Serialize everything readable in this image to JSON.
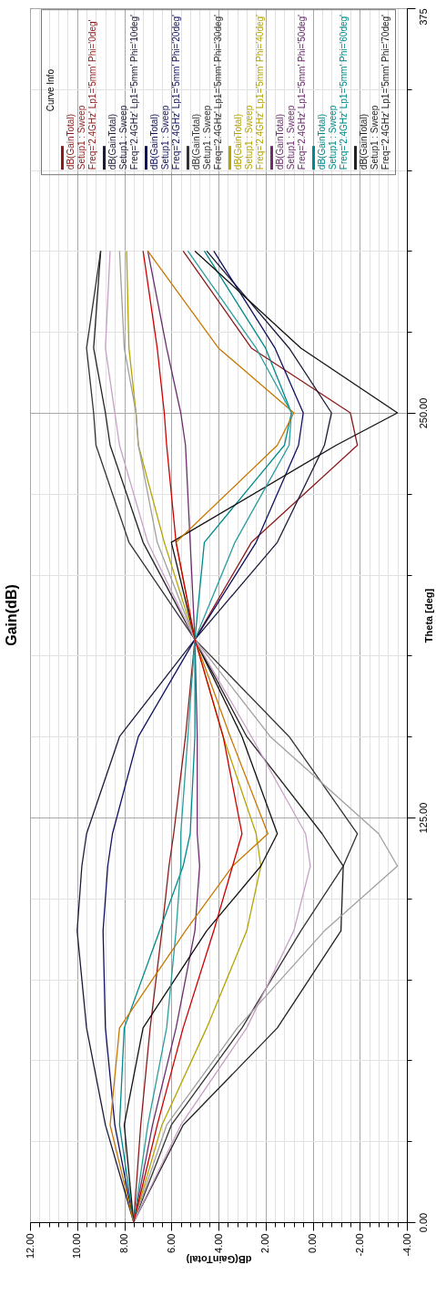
{
  "chart_data": {
    "type": "line",
    "title": "Gain(dB)",
    "xlabel": "dB(GainTotal)",
    "ylabel": "Theta [deg]",
    "legend_title": "Curve Info",
    "legend": "top",
    "grid": true,
    "xlim": [
      12,
      -4
    ],
    "xticks": [
      {
        "value": 12,
        "label": "12.00"
      },
      {
        "value": 11.6,
        "label": null
      },
      {
        "value": 11.2,
        "label": null
      },
      {
        "value": 10.8,
        "label": null
      },
      {
        "value": 10.4,
        "label": null
      },
      {
        "value": 10,
        "label": "10.00"
      },
      {
        "value": 9.6,
        "label": null
      },
      {
        "value": 9.2,
        "label": null
      },
      {
        "value": 8.8,
        "label": null
      },
      {
        "value": 8.4,
        "label": null
      },
      {
        "value": 8,
        "label": "8.00"
      },
      {
        "value": 7.6,
        "label": null
      },
      {
        "value": 7.2,
        "label": null
      },
      {
        "value": 6.8,
        "label": null
      },
      {
        "value": 6.4,
        "label": null
      },
      {
        "value": 6,
        "label": "6.00"
      },
      {
        "value": 5.6,
        "label": null
      },
      {
        "value": 5.2,
        "label": null
      },
      {
        "value": 4.8,
        "label": null
      },
      {
        "value": 4.4,
        "label": null
      },
      {
        "value": 4,
        "label": "4.00"
      },
      {
        "value": 3.6,
        "label": null
      },
      {
        "value": 3.2,
        "label": null
      },
      {
        "value": 2.8,
        "label": null
      },
      {
        "value": 2.4,
        "label": null
      },
      {
        "value": 2,
        "label": "2.00"
      },
      {
        "value": 1.6,
        "label": null
      },
      {
        "value": 1.2,
        "label": null
      },
      {
        "value": 0.8,
        "label": null
      },
      {
        "value": 0.4,
        "label": null
      },
      {
        "value": 0,
        "label": "0.00"
      },
      {
        "value": -0.4,
        "label": null
      },
      {
        "value": -0.8,
        "label": null
      },
      {
        "value": -1.2,
        "label": null
      },
      {
        "value": -1.6,
        "label": null
      },
      {
        "value": -2,
        "label": "-2.00"
      },
      {
        "value": -2.4,
        "label": null
      },
      {
        "value": -2.8,
        "label": null
      },
      {
        "value": -3.2,
        "label": null
      },
      {
        "value": -3.6,
        "label": null
      },
      {
        "value": -4,
        "label": "-4.00"
      }
    ],
    "ylim": [
      0,
      375
    ],
    "yticks": [
      {
        "value": 0,
        "label": "0.00"
      },
      {
        "value": 25,
        "label": null
      },
      {
        "value": 50,
        "label": null
      },
      {
        "value": 75,
        "label": null
      },
      {
        "value": 100,
        "label": null
      },
      {
        "value": 125,
        "label": "125.00"
      },
      {
        "value": 150,
        "label": null
      },
      {
        "value": 175,
        "label": null
      },
      {
        "value": 200,
        "label": null
      },
      {
        "value": 225,
        "label": null
      },
      {
        "value": 250,
        "label": "250.00"
      },
      {
        "value": 275,
        "label": null
      },
      {
        "value": 300,
        "label": null
      },
      {
        "value": 325,
        "label": null
      },
      {
        "value": 350,
        "label": null
      },
      {
        "value": 375,
        "label": "375"
      }
    ],
    "series": [
      {
        "name": "dB(GainTotal)\nSetup1 : Sweep\nFreq='2.4GHz' Lp1='5mm' Phi='0deg'",
        "color": "#8b1a1a",
        "x": [
          7.6,
          7.3,
          6.9,
          6.4,
          6.1,
          5.9,
          5.4,
          5.0,
          2.6,
          -1.9,
          -1.6,
          2.6,
          5.5
        ],
        "values": [
          0,
          30,
          60,
          90,
          110,
          120,
          150,
          180,
          210,
          240,
          250,
          270,
          300
        ]
      },
      {
        "name": "dB(GainTotal)\nSetup1 : Sweep\nFreq='2.4GHz' Lp1='5mm' Phi='10deg'",
        "color": "#1c1c3a",
        "x": [
          7.6,
          8.8,
          9.6,
          10.0,
          9.8,
          9.6,
          8.2,
          5.0,
          1.5,
          -0.5,
          -0.8,
          1.0,
          4.5
        ],
        "values": [
          0,
          30,
          60,
          90,
          110,
          120,
          150,
          180,
          210,
          240,
          250,
          270,
          300
        ]
      },
      {
        "name": "dB(GainTotal)\nSetup1 : Sweep\nFreq='2.4GHz' Lp1='5mm' Phi='20deg'",
        "color": "#101060",
        "x": [
          7.6,
          8.4,
          8.8,
          8.9,
          8.7,
          8.5,
          7.4,
          5.0,
          2.4,
          0.6,
          0.4,
          1.6,
          4.2
        ],
        "values": [
          0,
          30,
          60,
          90,
          110,
          120,
          150,
          180,
          210,
          240,
          250,
          270,
          300
        ]
      },
      {
        "name": "dB(GainTotal)\nSetup1 : Sweep\nFreq='2.4GHz' Lp1='5mm' Phi='30deg'",
        "color": "#333333",
        "x": [
          7.6,
          6.0,
          3.0,
          0.5,
          -1.3,
          -1.9,
          1.0,
          5.0,
          7.8,
          9.2,
          9.3,
          9.6,
          9.0
        ],
        "values": [
          0,
          30,
          60,
          90,
          110,
          120,
          150,
          180,
          210,
          240,
          250,
          270,
          300
        ]
      },
      {
        "name": "dB(GainTotal)\nSetup1 : Sweep\nFreq='2.4GHz' Lp1='5mm' Phi='40deg'",
        "color": "#b5a300",
        "x": [
          7.6,
          6.4,
          4.5,
          2.8,
          2.2,
          2.4,
          3.8,
          5.0,
          6.3,
          7.4,
          7.5,
          7.8,
          7.9
        ],
        "values": [
          0,
          30,
          60,
          90,
          110,
          120,
          150,
          180,
          210,
          240,
          250,
          270,
          300
        ]
      },
      {
        "name": "dB(GainTotal)\nSetup1 : Sweep\nFreq='2.4GHz' Lp1='5mm' Phi='50deg'",
        "color": "#6b2d6b",
        "x": [
          7.6,
          6.8,
          5.8,
          5.0,
          4.8,
          4.9,
          4.9,
          5.0,
          5.2,
          5.4,
          5.6,
          6.2,
          7.0
        ],
        "values": [
          0,
          30,
          60,
          90,
          110,
          120,
          150,
          180,
          210,
          240,
          250,
          270,
          300
        ]
      },
      {
        "name": "dB(GainTotal)\nSetup1 : Sweep\nFreq='2.4GHz' Lp1='5mm' Phi='60deg'",
        "color": "#008b8b",
        "x": [
          7.6,
          8.2,
          8.0,
          6.5,
          5.5,
          5.2,
          5.0,
          5.0,
          4.6,
          1.2,
          0.9,
          2.0,
          4.6
        ],
        "values": [
          0,
          30,
          60,
          90,
          110,
          120,
          150,
          180,
          210,
          240,
          250,
          270,
          300
        ]
      },
      {
        "name": "dB(GainTotal)\nSetup1 : Sweep\nFreq='2.4GHz' Lp1='5mm' Phi='70deg'",
        "color": "#222222",
        "x": [
          7.6,
          5.5,
          1.5,
          -1.2,
          -1.3,
          -0.4,
          2.8,
          5.0,
          7.2,
          8.6,
          8.8,
          9.3,
          9.0
        ],
        "values": [
          0,
          30,
          60,
          90,
          110,
          120,
          150,
          180,
          210,
          240,
          250,
          270,
          300
        ]
      },
      {
        "color": "#a0a0a0",
        "x": [
          7.6,
          6.2,
          3.2,
          -0.5,
          -3.6,
          -2.8,
          1.8,
          5.0,
          6.6,
          7.4,
          7.5,
          8.0,
          8.2
        ],
        "values": [
          0,
          30,
          60,
          90,
          110,
          120,
          150,
          180,
          210,
          240,
          250,
          270,
          300
        ]
      },
      {
        "color": "#111111",
        "x": [
          7.6,
          8.0,
          7.2,
          4.5,
          2.2,
          1.5,
          3.0,
          5.0,
          6.0,
          -1.0,
          -3.6,
          0.5,
          5.0
        ],
        "values": [
          0,
          30,
          60,
          90,
          110,
          120,
          150,
          180,
          210,
          240,
          250,
          270,
          300
        ]
      },
      {
        "color": "#c87800",
        "x": [
          7.6,
          8.6,
          8.2,
          5.4,
          3.4,
          1.9,
          3.5,
          5.0,
          5.8,
          1.5,
          0.8,
          4.0,
          7.0
        ],
        "values": [
          0,
          30,
          60,
          90,
          110,
          120,
          150,
          180,
          210,
          240,
          250,
          270,
          300
        ]
      },
      {
        "color": "#c8a0c8",
        "x": [
          7.6,
          5.6,
          2.8,
          0.8,
          0.1,
          0.3,
          2.6,
          5.0,
          7.0,
          8.2,
          8.4,
          8.8,
          8.6
        ],
        "values": [
          0,
          30,
          60,
          90,
          110,
          120,
          150,
          180,
          210,
          240,
          250,
          270,
          300
        ]
      },
      {
        "color": "#2a9d9d",
        "x": [
          7.6,
          7.0,
          6.2,
          5.8,
          5.6,
          5.6,
          5.3,
          5.0,
          3.3,
          1.0,
          0.9,
          2.4,
          5.3
        ],
        "values": [
          0,
          30,
          60,
          90,
          110,
          120,
          150,
          180,
          210,
          240,
          250,
          270,
          300
        ]
      },
      {
        "color": "#cc0000",
        "x": [
          7.6,
          6.6,
          5.5,
          4.2,
          3.4,
          3.0,
          3.8,
          5.0,
          5.8,
          6.2,
          6.3,
          6.6,
          7.2
        ],
        "values": [
          0,
          30,
          60,
          90,
          110,
          120,
          150,
          180,
          210,
          240,
          250,
          270,
          300
        ]
      }
    ]
  }
}
